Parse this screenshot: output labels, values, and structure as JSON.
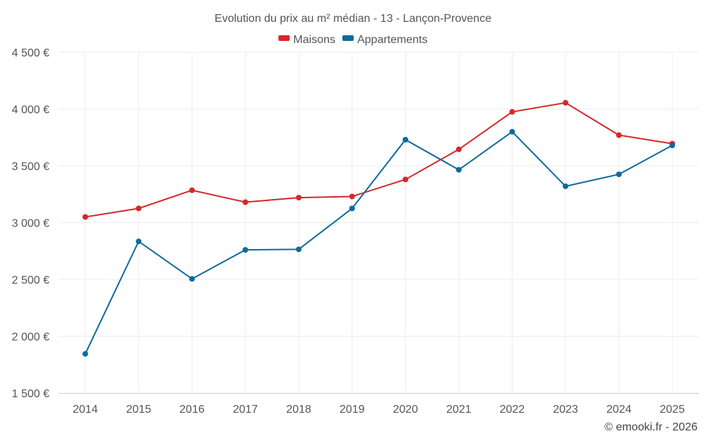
{
  "chart_data": {
    "type": "line",
    "title": "Evolution du prix au m² médian - 13 - Lançon-Provence",
    "categories": [
      "2014",
      "2015",
      "2016",
      "2017",
      "2018",
      "2019",
      "2020",
      "2021",
      "2022",
      "2023",
      "2024",
      "2025"
    ],
    "series": [
      {
        "name": "Maisons",
        "color": "#d62728",
        "values": [
          3050,
          3125,
          3285,
          3180,
          3220,
          3230,
          3380,
          3645,
          3975,
          4055,
          3770,
          3695
        ]
      },
      {
        "name": "Appartements",
        "color": "#0e6a9e",
        "values": [
          1845,
          2835,
          2505,
          2760,
          2765,
          3125,
          3730,
          3465,
          3800,
          3320,
          3425,
          3680
        ]
      }
    ],
    "ylim": [
      1500,
      4500
    ],
    "yticks": [
      1500,
      2000,
      2500,
      3000,
      3500,
      4000,
      4500
    ],
    "ytick_labels": [
      "1 500 €",
      "2 000 €",
      "2 500 €",
      "3 000 €",
      "3 500 €",
      "4 000 €",
      "4 500 €"
    ],
    "xlabel": "",
    "ylabel": "",
    "grid": true,
    "legend_position": "top-center"
  },
  "credit": "© emooki.fr - 2026"
}
